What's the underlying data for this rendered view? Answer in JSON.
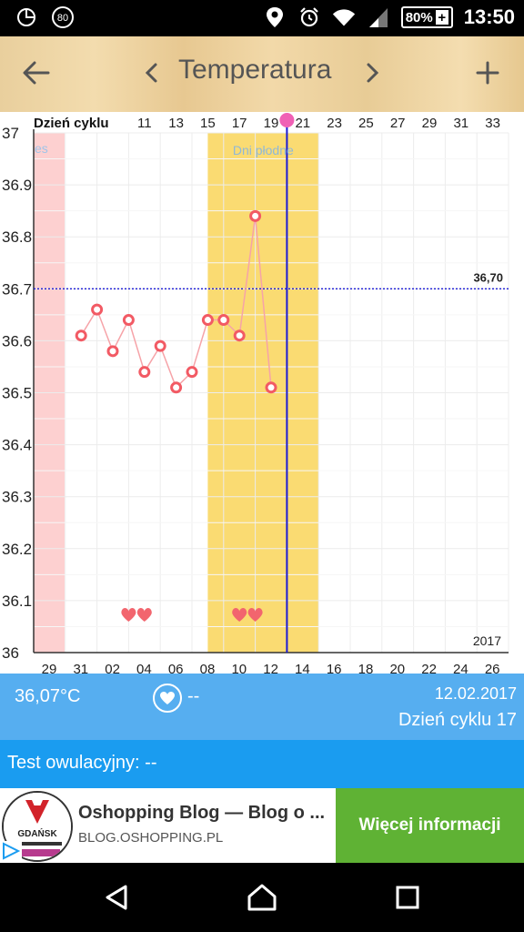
{
  "status_bar": {
    "notification_count": "80",
    "battery": "80%",
    "time": "13:50",
    "icons": [
      "app-notification-icon",
      "notification-count-badge",
      "location-icon",
      "alarm-icon",
      "wifi-icon",
      "cell-signal-icon",
      "battery-icon"
    ]
  },
  "toolbar": {
    "title": "Temperatura",
    "back_icon": "arrow-left-icon",
    "prev_icon": "chevron-left-icon",
    "next_icon": "chevron-right-icon",
    "add_icon": "plus-icon"
  },
  "chart": {
    "top_axis_title": "Dzień cyklu",
    "top_labels": [
      "11",
      "13",
      "15",
      "17",
      "19",
      "21",
      "23",
      "25",
      "27",
      "29",
      "31",
      "33"
    ],
    "y_labels": [
      "37",
      "36.9",
      "36.8",
      "36.7",
      "36.6",
      "36.5",
      "36.4",
      "36.3",
      "36.2",
      "36.1",
      "36"
    ],
    "bottom_labels": [
      "29",
      "31",
      "02",
      "04",
      "06",
      "08",
      "10",
      "12",
      "14",
      "16",
      "18",
      "20",
      "22",
      "24",
      "26"
    ],
    "period_label": "es",
    "fertile_label": "Dni płodne",
    "threshold_label": "36,70",
    "year_label": "2017",
    "colors": {
      "period_band": "#fdd0d0",
      "fertile_band": "#fadb72",
      "line": "#f6a3a8",
      "point": "#f25a64",
      "threshold": "#1b1bd6",
      "today": "#1b1bd6",
      "heart": "#f2656e"
    }
  },
  "chart_data": {
    "type": "line",
    "title": "Temperatura",
    "xlabel": "Dzień cyklu",
    "ylabel": "",
    "ylim": [
      36.0,
      37.0
    ],
    "x": [
      "31",
      "01",
      "02",
      "03",
      "04",
      "05",
      "06",
      "07",
      "08",
      "09",
      "10",
      "11",
      "12"
    ],
    "series": [
      {
        "values": [
          36.61,
          36.66,
          36.58,
          36.64,
          36.54,
          36.59,
          36.51,
          36.54,
          36.64,
          36.64,
          36.61,
          36.84,
          36.51
        ]
      }
    ],
    "threshold": 36.7,
    "fertile_days": [
      "08",
      "14"
    ],
    "today": "13",
    "grid": true
  },
  "info": {
    "temperature": "36,07°C",
    "heart_icon": "heart-icon",
    "heart_value": "--",
    "date": "12.02.2017",
    "cycle_day": "Dzień cyklu 17"
  },
  "test": {
    "label": "Test owulacyjny: --"
  },
  "ad": {
    "title": "Oshopping Blog ― Blog o ...",
    "url": "BLOG.OSHOPPING.PL",
    "cta": "Więcej informacji",
    "logo_text": "GDAŃSK",
    "logo_icon": "oshopping-logo-icon"
  },
  "nav": {
    "back_icon": "nav-back-icon",
    "home_icon": "nav-home-icon",
    "recents_icon": "nav-recents-icon"
  }
}
